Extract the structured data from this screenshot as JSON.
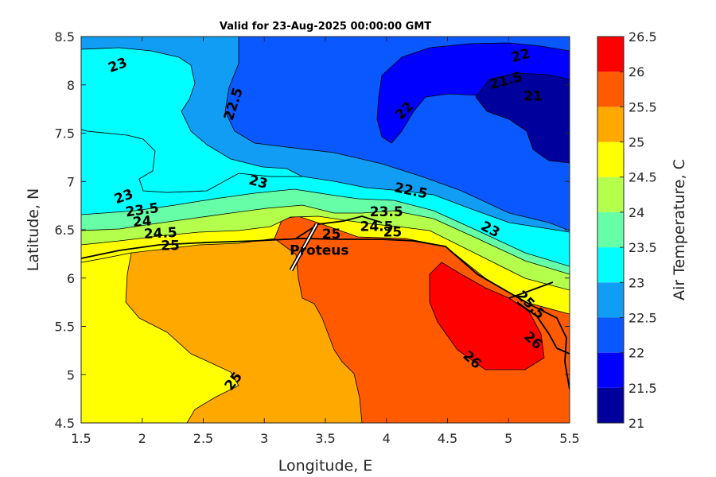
{
  "chart_data": {
    "type": "heatmap",
    "subtype": "filled-contour-map",
    "title": "Valid for 23-Aug-2025 00:00:00 GMT",
    "xlabel": "Longitude, E",
    "ylabel": "Latitude, N",
    "xlim": [
      1.5,
      5.5
    ],
    "ylim": [
      4.5,
      8.5
    ],
    "xticks": [
      1.5,
      2,
      2.5,
      3,
      3.5,
      4,
      4.5,
      5,
      5.5
    ],
    "yticks": [
      4.5,
      5,
      5.5,
      6,
      6.5,
      7,
      7.5,
      8,
      8.5
    ],
    "colorbar": {
      "label": "Air Temperature, C",
      "levels": [
        21,
        21.5,
        22,
        22.5,
        23,
        23.5,
        24,
        24.5,
        25,
        25.5,
        26,
        26.5
      ],
      "colors": [
        "#00009d",
        "#0000ff",
        "#0a58ff",
        "#129df5",
        "#00ffff",
        "#66ffa8",
        "#b3ff4c",
        "#ffff00",
        "#ffa800",
        "#ff5a00",
        "#ff0000",
        "#a40000"
      ]
    },
    "contour_labels": [
      {
        "text": "23",
        "lon": 1.8,
        "lat": 8.2,
        "angle": -20
      },
      {
        "text": "22.5",
        "lon": 2.75,
        "lat": 7.8,
        "angle": -72
      },
      {
        "text": "22",
        "lon": 5.1,
        "lat": 8.3,
        "angle": -15
      },
      {
        "text": "21.5",
        "lon": 4.98,
        "lat": 8.04,
        "angle": -15
      },
      {
        "text": "21",
        "lon": 5.2,
        "lat": 7.88,
        "angle": 0
      },
      {
        "text": "22",
        "lon": 4.15,
        "lat": 7.73,
        "angle": -45
      },
      {
        "text": "23",
        "lon": 1.85,
        "lat": 6.84,
        "angle": -20
      },
      {
        "text": "23",
        "lon": 2.95,
        "lat": 6.99,
        "angle": 15
      },
      {
        "text": "22.5",
        "lon": 4.2,
        "lat": 6.9,
        "angle": 12
      },
      {
        "text": "23.5",
        "lon": 2.0,
        "lat": 6.7,
        "angle": -8
      },
      {
        "text": "24",
        "lon": 2.0,
        "lat": 6.58,
        "angle": -5
      },
      {
        "text": "24.5",
        "lon": 2.15,
        "lat": 6.46,
        "angle": -3
      },
      {
        "text": "25",
        "lon": 2.23,
        "lat": 6.33,
        "angle": 0
      },
      {
        "text": "23.5",
        "lon": 4.0,
        "lat": 6.68,
        "angle": 0
      },
      {
        "text": "24.5",
        "lon": 3.92,
        "lat": 6.53,
        "angle": 0
      },
      {
        "text": "25",
        "lon": 4.05,
        "lat": 6.47,
        "angle": 0
      },
      {
        "text": "23",
        "lon": 4.85,
        "lat": 6.5,
        "angle": 28
      },
      {
        "text": "25",
        "lon": 3.55,
        "lat": 6.45,
        "angle": 0
      },
      {
        "text": "25",
        "lon": 2.75,
        "lat": 4.93,
        "angle": -52
      },
      {
        "text": "26",
        "lon": 4.7,
        "lat": 5.15,
        "angle": 42
      },
      {
        "text": "26",
        "lon": 5.2,
        "lat": 5.35,
        "angle": 42
      },
      {
        "text": "25.5",
        "lon": 5.18,
        "lat": 5.72,
        "angle": 45
      }
    ],
    "annotations": [
      {
        "text": "Proteus",
        "lon": 3.45,
        "lat": 6.28
      }
    ]
  }
}
